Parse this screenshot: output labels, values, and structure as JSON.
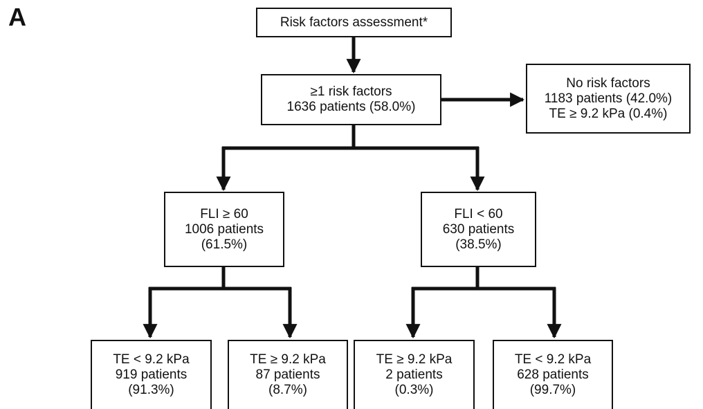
{
  "figure": {
    "panel_label": "A"
  },
  "nodes": {
    "root": {
      "line1": "Risk factors assessment*"
    },
    "risk": {
      "line1": "≥1 risk factors",
      "line2": "1636 patients (58.0%)"
    },
    "none": {
      "line1": "No risk factors",
      "line2": "1183 patients (42.0%)",
      "line3": "TE ≥ 9.2 kPa (0.4%)"
    },
    "fli_high": {
      "line1": "FLI ≥ 60",
      "line2": "1006 patients",
      "line3": "(61.5%)"
    },
    "fli_low": {
      "line1": "FLI < 60",
      "line2": "630 patients",
      "line3": "(38.5%)"
    },
    "leaf1": {
      "line1": "TE < 9.2 kPa",
      "line2": "919 patients",
      "line3": "(91.3%)"
    },
    "leaf2": {
      "line1": "TE ≥ 9.2 kPa",
      "line2": "87 patients",
      "line3": "(8.7%)"
    },
    "leaf3": {
      "line1": "TE ≥ 9.2 kPa",
      "line2": "2 patients",
      "line3": "(0.3%)"
    },
    "leaf4": {
      "line1": "TE < 9.2 kPa",
      "line2": "628 patients",
      "line3": "(99.7%)"
    }
  },
  "edges": [
    {
      "from": "root",
      "to": "risk"
    },
    {
      "from": "risk",
      "to": "none"
    },
    {
      "from": "risk",
      "to": "fli_high"
    },
    {
      "from": "risk",
      "to": "fli_low"
    },
    {
      "from": "fli_high",
      "to": "leaf1"
    },
    {
      "from": "fli_high",
      "to": "leaf2"
    },
    {
      "from": "fli_low",
      "to": "leaf3"
    },
    {
      "from": "fli_low",
      "to": "leaf4"
    }
  ],
  "style": {
    "line_color": "#111111",
    "box_border": "#111111",
    "background": "#ffffff"
  }
}
